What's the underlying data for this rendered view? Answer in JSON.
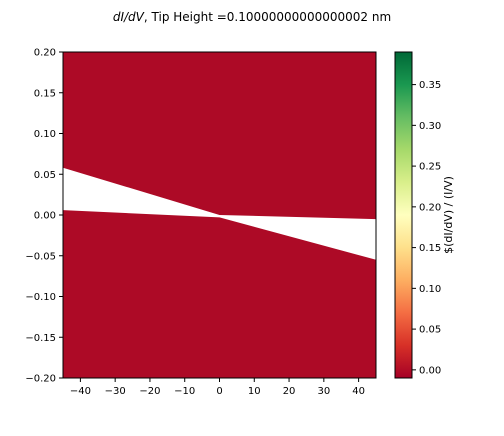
{
  "chart_data": {
    "type": "heatmap",
    "title": "$dI/dV$, Tip Height =0.10000000000000002 nm",
    "title_parts": {
      "italic": "dI/dV",
      "rest": ", Tip Height =0.10000000000000002 nm"
    },
    "xlabel": "",
    "ylabel": "",
    "xlim": [
      -45,
      45
    ],
    "ylim": [
      -0.2,
      0.2
    ],
    "x_ticks": [
      -40,
      -30,
      -20,
      -10,
      0,
      10,
      20,
      30,
      40
    ],
    "y_ticks": [
      0.2,
      0.15,
      0.1,
      0.05,
      0.0,
      -0.05,
      -0.1,
      -0.15,
      -0.2
    ],
    "y_tick_labels": [
      "0.20",
      "0.15",
      "0.10",
      "0.05",
      "0.00",
      "−0.05",
      "−0.10",
      "−0.15",
      "−0.20"
    ],
    "x_tick_labels": [
      "−40",
      "−30",
      "−20",
      "−10",
      "0",
      "10",
      "20",
      "30",
      "40"
    ],
    "field_value": -0.01,
    "field_color": "#ad0a26",
    "blank_regions": [
      {
        "description_points": [
          [
            -45,
            0.058
          ],
          [
            0,
            0.0
          ],
          [
            45,
            -0.005
          ],
          [
            45,
            -0.055
          ],
          [
            0,
            -0.003
          ],
          [
            -45,
            0.006
          ]
        ]
      }
    ],
    "blank_color": "#ffffff",
    "colorbar": {
      "label": "$(dI/dV) / (I/V)",
      "range": [
        -0.01,
        0.39
      ],
      "ticks": [
        0.35,
        0.3,
        0.25,
        0.2,
        0.15,
        0.1,
        0.05,
        0.0
      ],
      "tick_labels": [
        "0.35",
        "0.30",
        "0.25",
        "0.20",
        "0.15",
        "0.10",
        "0.05",
        "0.00"
      ],
      "colormap": "RdYlGn",
      "stops": [
        "#a50026",
        "#d73027",
        "#f46d43",
        "#fdae61",
        "#fee08b",
        "#ffffbf",
        "#d9ef8b",
        "#a6d96a",
        "#66bd63",
        "#1a9850",
        "#006837"
      ]
    }
  }
}
